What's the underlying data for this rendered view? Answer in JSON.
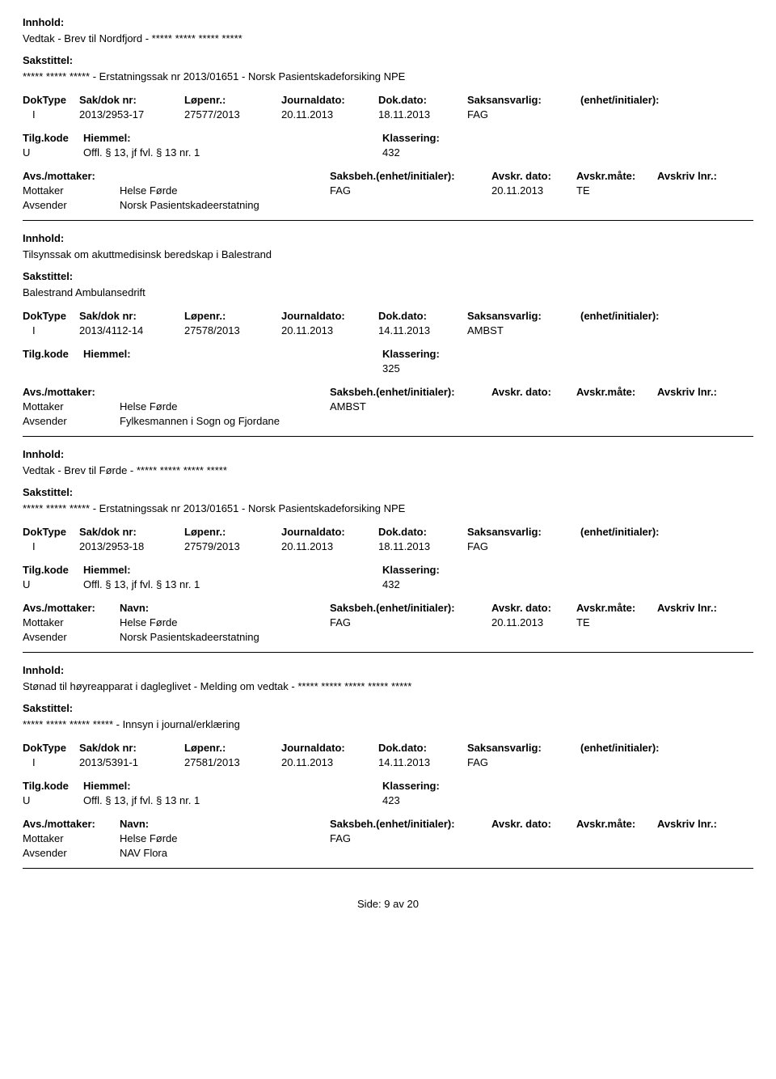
{
  "labels": {
    "innhold": "Innhold:",
    "sakstittel": "Sakstittel:",
    "doktype": "DokType",
    "sakdok": "Sak/dok nr:",
    "lopenr": "Løpenr.:",
    "journaldato": "Journaldato:",
    "dokdato": "Dok.dato:",
    "saksansvarlig": "Saksansvarlig:",
    "enhet": "(enhet/initialer):",
    "tilgkode": "Tilg.kode",
    "hjemmel": "Hiemmel:",
    "klassering": "Klassering:",
    "avsmottaker": "Avs./mottaker:",
    "navn": "Navn:",
    "saksbeh": "Saksbeh.(enhet/initialer):",
    "avskrdato": "Avskr. dato:",
    "avskrmate": "Avskr.måte:",
    "avskrivlnr": "Avskriv lnr.:",
    "mottaker": "Mottaker",
    "avsender": "Avsender",
    "side": "Side:",
    "av": "av"
  },
  "records": [
    {
      "innhold": "Vedtak - Brev til Nordfjord - ***** ***** ***** *****",
      "sakstittel": "***** ***** ***** - Erstatningssak nr 2013/01651 - Norsk Pasientskadeforsiking NPE",
      "doktype": "I",
      "sakdok": "2013/2953-17",
      "lopenr": "27577/2013",
      "journaldato": "20.11.2013",
      "dokdato": "18.11.2013",
      "saksansvarlig": "FAG",
      "enhet": "",
      "tilgkode": "U",
      "hjemmel": "Offl. § 13, jf fvl. § 13 nr. 1",
      "klassering": "432",
      "parties": [
        {
          "role": "Mottaker",
          "navn": "Helse Førde",
          "saksbeh": "FAG",
          "avskrdato": "20.11.2013",
          "avskrmate": "TE",
          "avskrlnr": ""
        },
        {
          "role": "Avsender",
          "navn": "Norsk Pasientskadeerstatning",
          "saksbeh": "",
          "avskrdato": "",
          "avskrmate": "",
          "avskrlnr": ""
        }
      ],
      "showPartyHeader": false
    },
    {
      "innhold": "Tilsynssak om akuttmedisinsk beredskap i Balestrand",
      "sakstittel": "Balestrand Ambulansedrift",
      "doktype": "I",
      "sakdok": "2013/4112-14",
      "lopenr": "27578/2013",
      "journaldato": "20.11.2013",
      "dokdato": "14.11.2013",
      "saksansvarlig": "AMBST",
      "enhet": "",
      "tilgkode": "",
      "hjemmel": "",
      "klassering": "325",
      "parties": [
        {
          "role": "Mottaker",
          "navn": "Helse Førde",
          "saksbeh": "AMBST",
          "avskrdato": "",
          "avskrmate": "",
          "avskrlnr": ""
        },
        {
          "role": "Avsender",
          "navn": "Fylkesmannen i Sogn og Fjordane",
          "saksbeh": "",
          "avskrdato": "",
          "avskrmate": "",
          "avskrlnr": ""
        }
      ],
      "showPartyHeader": false
    },
    {
      "innhold": "Vedtak - Brev til Førde - ***** ***** ***** *****",
      "sakstittel": "***** ***** ***** - Erstatningssak nr 2013/01651 - Norsk Pasientskadeforsiking NPE",
      "doktype": "I",
      "sakdok": "2013/2953-18",
      "lopenr": "27579/2013",
      "journaldato": "20.11.2013",
      "dokdato": "18.11.2013",
      "saksansvarlig": "FAG",
      "enhet": "",
      "tilgkode": "U",
      "hjemmel": "Offl. § 13, jf fvl. § 13 nr. 1",
      "klassering": "432",
      "parties": [
        {
          "role": "Mottaker",
          "navn": "Helse Førde",
          "saksbeh": "FAG",
          "avskrdato": "20.11.2013",
          "avskrmate": "TE",
          "avskrlnr": ""
        },
        {
          "role": "Avsender",
          "navn": "Norsk Pasientskadeerstatning",
          "saksbeh": "",
          "avskrdato": "",
          "avskrmate": "",
          "avskrlnr": ""
        }
      ],
      "showPartyHeader": true
    },
    {
      "innhold": "Stønad til høyreapparat i dagleglivet - Melding om vedtak - ***** ***** ***** ***** *****",
      "sakstittel": "***** ***** ***** ***** - Innsyn i journal/erklæring",
      "doktype": "I",
      "sakdok": "2013/5391-1",
      "lopenr": "27581/2013",
      "journaldato": "20.11.2013",
      "dokdato": "14.11.2013",
      "saksansvarlig": "FAG",
      "enhet": "",
      "tilgkode": "U",
      "hjemmel": "Offl. § 13, jf fvl. § 13 nr. 1",
      "klassering": "423",
      "parties": [
        {
          "role": "Mottaker",
          "navn": "Helse Førde",
          "saksbeh": "FAG",
          "avskrdato": "",
          "avskrmate": "",
          "avskrlnr": ""
        },
        {
          "role": "Avsender",
          "navn": "NAV Flora",
          "saksbeh": "",
          "avskrdato": "",
          "avskrmate": "",
          "avskrlnr": ""
        }
      ],
      "showPartyHeader": true
    }
  ],
  "footer": {
    "page": "9",
    "total": "20"
  }
}
